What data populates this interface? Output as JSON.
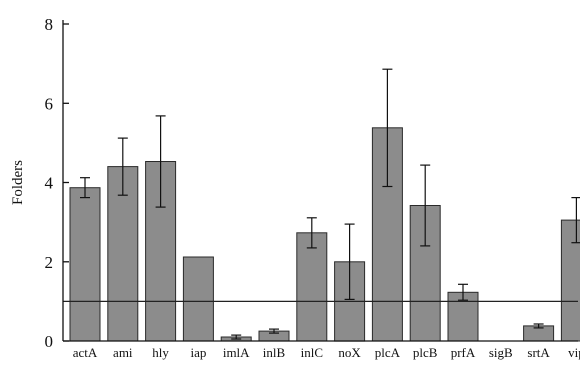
{
  "chart_data": {
    "type": "bar",
    "title": "",
    "xlabel": "",
    "ylabel": "Folders",
    "ylim": [
      0,
      8
    ],
    "yticks": [
      0,
      2,
      4,
      6,
      8
    ],
    "categories": [
      "actA",
      "ami",
      "hly",
      "iap",
      "imlA",
      "inlB",
      "inlC",
      "noX",
      "plcA",
      "plcB",
      "prfA",
      "sigB",
      "srtA",
      "vip"
    ],
    "values": [
      3.87,
      4.4,
      4.53,
      2.12,
      0.1,
      0.25,
      2.73,
      2.0,
      5.38,
      3.42,
      1.23,
      0.0,
      0.38,
      3.05
    ],
    "error": [
      0.25,
      0.72,
      1.15,
      0.0,
      0.05,
      0.05,
      0.38,
      0.95,
      1.48,
      1.02,
      0.2,
      0.0,
      0.05,
      0.57
    ],
    "reference_line": 1.0,
    "colors": {
      "bar_fill": "#8c8c8c",
      "bar_stroke": "#2a2a2a",
      "axis": "#111111",
      "reference_line": "#222222"
    }
  }
}
